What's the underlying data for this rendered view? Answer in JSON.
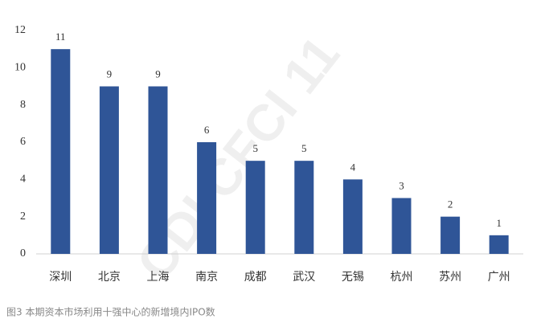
{
  "chart_data": {
    "type": "bar",
    "categories": [
      "深圳",
      "北京",
      "上海",
      "南京",
      "成都",
      "武汉",
      "无锡",
      "杭州",
      "苏州",
      "广州"
    ],
    "values": [
      11,
      9,
      9,
      6,
      5,
      5,
      4,
      3,
      2,
      1
    ],
    "color": "#2f5597",
    "ylim": [
      0,
      12
    ],
    "yticks": [
      0,
      2,
      4,
      6,
      8,
      10,
      12
    ],
    "grid": false,
    "caption": "图3 本期资本市场利用十强中心的新增境内IPO数",
    "watermark": "CDI CFCI 11"
  }
}
